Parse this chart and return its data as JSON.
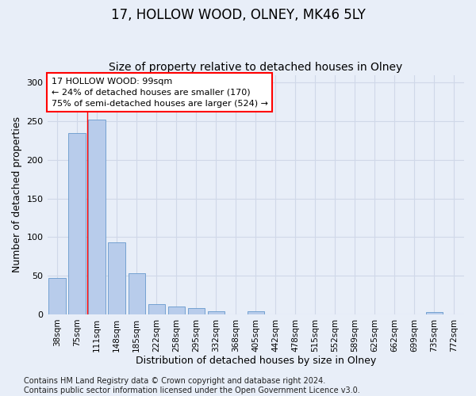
{
  "title": "17, HOLLOW WOOD, OLNEY, MK46 5LY",
  "subtitle": "Size of property relative to detached houses in Olney",
  "xlabel": "Distribution of detached houses by size in Olney",
  "ylabel": "Number of detached properties",
  "categories": [
    "38sqm",
    "75sqm",
    "111sqm",
    "148sqm",
    "185sqm",
    "222sqm",
    "258sqm",
    "295sqm",
    "332sqm",
    "368sqm",
    "405sqm",
    "442sqm",
    "478sqm",
    "515sqm",
    "552sqm",
    "589sqm",
    "625sqm",
    "662sqm",
    "699sqm",
    "735sqm",
    "772sqm"
  ],
  "values": [
    47,
    235,
    252,
    93,
    53,
    13,
    10,
    8,
    4,
    0,
    4,
    0,
    0,
    0,
    0,
    0,
    0,
    0,
    0,
    3,
    0
  ],
  "bar_color": "#b8cceb",
  "bar_edge_color": "#6699cc",
  "grid_color": "#d0d8e8",
  "bg_color": "#e8eef8",
  "annotation_text": "17 HOLLOW WOOD: 99sqm\n← 24% of detached houses are smaller (170)\n75% of semi-detached houses are larger (524) →",
  "annotation_box_facecolor": "white",
  "annotation_box_edgecolor": "red",
  "redline_x": 1.5,
  "footer": "Contains HM Land Registry data © Crown copyright and database right 2024.\nContains public sector information licensed under the Open Government Licence v3.0.",
  "ylim": [
    0,
    310
  ],
  "yticks": [
    0,
    50,
    100,
    150,
    200,
    250,
    300
  ],
  "title_fontsize": 12,
  "subtitle_fontsize": 10,
  "axis_label_fontsize": 9,
  "tick_fontsize": 7.5,
  "annotation_fontsize": 8,
  "footer_fontsize": 7
}
